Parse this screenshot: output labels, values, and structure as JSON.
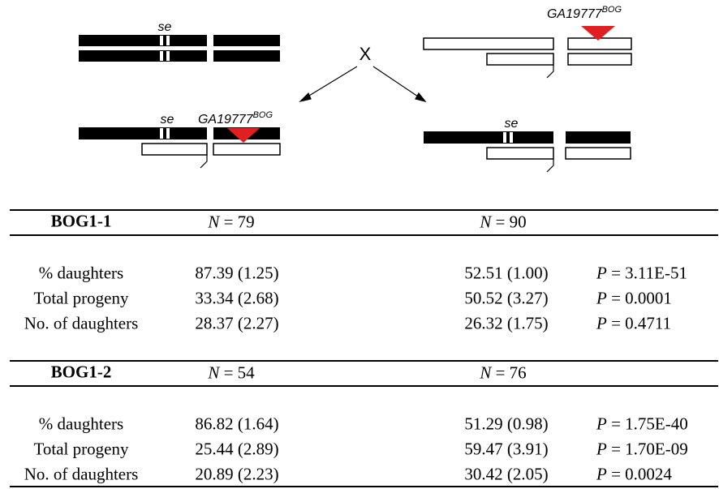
{
  "diagram": {
    "cross": "X",
    "parent_left": {
      "locus": "se"
    },
    "parent_right": {
      "insertion": {
        "name": "GA19777",
        "sup": "BOG"
      }
    },
    "offspring_left": {
      "locus": "se",
      "insertion": {
        "name": "GA19777",
        "sup": "BOG"
      }
    },
    "offspring_right": {
      "locus": "se"
    }
  },
  "table": {
    "sections": [
      {
        "title": "BOG1-1",
        "n": [
          {
            "symbol": "N",
            "text": "= 79"
          },
          {
            "symbol": "N",
            "text": "= 90"
          }
        ],
        "rows": [
          {
            "label": "% daughters",
            "left": "87.39 (1.25)",
            "right": "52.51 (1.00)",
            "p_symbol": "P",
            "p": "= 3.11E-51"
          },
          {
            "label": "Total progeny",
            "left": "33.34 (2.68)",
            "right": "50.52 (3.27)",
            "p_symbol": "P",
            "p": "= 0.0001"
          },
          {
            "label": "No. of daughters",
            "left": "28.37 (2.27)",
            "right": "26.32 (1.75)",
            "p_symbol": "P",
            "p": "= 0.4711"
          }
        ]
      },
      {
        "title": "BOG1-2",
        "n": [
          {
            "symbol": "N",
            "text": "= 54"
          },
          {
            "symbol": "N",
            "text": "= 76"
          }
        ],
        "rows": [
          {
            "label": "% daughters",
            "left": "86.82 (1.64)",
            "right": "51.29 (0.98)",
            "p_symbol": "P",
            "p": "= 1.75E-40"
          },
          {
            "label": "Total progeny",
            "left": "25.44 (2.89)",
            "right": "59.47 (3.91)",
            "p_symbol": "P",
            "p": "= 1.70E-09"
          },
          {
            "label": "No. of daughters",
            "left": "20.89 (2.23)",
            "right": "30.42 (2.05)",
            "p_symbol": "P",
            "p": "= 0.0024"
          }
        ]
      }
    ]
  }
}
